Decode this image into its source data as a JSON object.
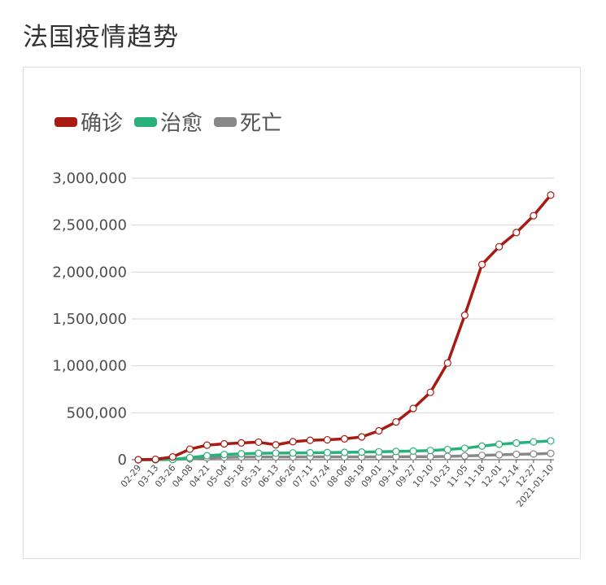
{
  "page": {
    "title": "法国疫情趋势"
  },
  "colors": {
    "confirmed": "#a71b13",
    "recovered": "#2ab07a",
    "deaths": "#888888",
    "grid": "#d6d6d6",
    "axis": "#4d4d4d"
  },
  "chart_data": {
    "type": "line",
    "title": "",
    "legend_position": "top-left",
    "grid": true,
    "ylim": [
      0,
      3000000
    ],
    "y_ticks": [
      0,
      500000,
      1000000,
      1500000,
      2000000,
      2500000,
      3000000
    ],
    "y_tick_labels": [
      "0",
      "500,000",
      "1,000,000",
      "1,500,000",
      "2,000,000",
      "2,500,000",
      "3,000,000"
    ],
    "categories": [
      "02-29",
      "03-13",
      "03-26",
      "04-08",
      "04-21",
      "05-04",
      "05-18",
      "05-31",
      "06-13",
      "06-26",
      "07-11",
      "07-24",
      "08-06",
      "08-19",
      "09-01",
      "09-14",
      "09-27",
      "10-10",
      "10-23",
      "11-05",
      "11-18",
      "12-01",
      "12-14",
      "12-27",
      "2021-01-10"
    ],
    "series": [
      {
        "name": "确诊",
        "color": "#a71b13",
        "values": [
          100,
          4500,
          29000,
          112000,
          155000,
          169000,
          179000,
          187000,
          158000,
          192000,
          207000,
          212000,
          222000,
          243000,
          308000,
          402000,
          546000,
          718000,
          1030000,
          1540000,
          2080000,
          2270000,
          2420000,
          2600000,
          2820000
        ]
      },
      {
        "name": "治愈",
        "color": "#2ab07a",
        "values": [
          10,
          200,
          3000,
          22000,
          42000,
          55000,
          63000,
          68000,
          70000,
          72000,
          74000,
          76000,
          78000,
          81000,
          84000,
          88000,
          92000,
          98000,
          108000,
          122000,
          145000,
          165000,
          178000,
          190000,
          200000
        ]
      },
      {
        "name": "死亡",
        "color": "#888888",
        "values": [
          2,
          80,
          1700,
          10000,
          20800,
          25200,
          28200,
          28800,
          29400,
          29800,
          30100,
          30200,
          30300,
          30500,
          30800,
          31300,
          32000,
          33000,
          35000,
          40000,
          46000,
          52000,
          57000,
          61000,
          67000
        ]
      }
    ]
  }
}
